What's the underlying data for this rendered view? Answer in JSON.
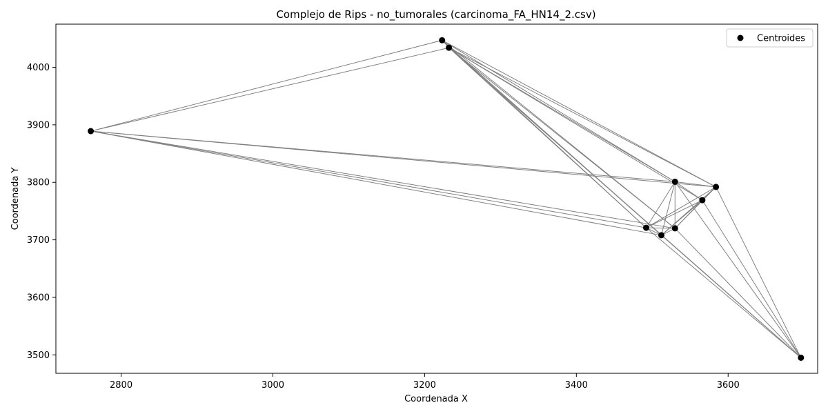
{
  "chart_data": {
    "type": "scatter",
    "title": "Complejo de Rips - no_tumorales (carcinoma_FA_HN14_2.csv)",
    "xlabel": "Coordenada X",
    "ylabel": "Coordenada Y",
    "xlim": [
      2714,
      3718
    ],
    "ylim": [
      3468,
      4075
    ],
    "xticks": [
      2800,
      3000,
      3200,
      3400,
      3600
    ],
    "yticks": [
      3500,
      3600,
      3700,
      3800,
      3900,
      4000
    ],
    "grid": false,
    "legend": {
      "position": "top-right",
      "entries": [
        "Centroides"
      ]
    },
    "colors": {
      "points": "#000000",
      "edges": "#808080"
    },
    "series": [
      {
        "name": "Centroides",
        "points": [
          {
            "x": 2760,
            "y": 3889
          },
          {
            "x": 3223,
            "y": 4047
          },
          {
            "x": 3232,
            "y": 4034
          },
          {
            "x": 3530,
            "y": 3801
          },
          {
            "x": 3584,
            "y": 3792
          },
          {
            "x": 3566,
            "y": 3769
          },
          {
            "x": 3492,
            "y": 3721
          },
          {
            "x": 3530,
            "y": 3720
          },
          {
            "x": 3512,
            "y": 3708
          },
          {
            "x": 3696,
            "y": 3495
          }
        ]
      }
    ],
    "edges": [
      [
        0,
        1
      ],
      [
        0,
        2
      ],
      [
        0,
        3
      ],
      [
        0,
        4
      ],
      [
        0,
        6
      ],
      [
        0,
        7
      ],
      [
        0,
        8
      ],
      [
        1,
        2
      ],
      [
        1,
        3
      ],
      [
        1,
        4
      ],
      [
        1,
        6
      ],
      [
        1,
        7
      ],
      [
        1,
        8
      ],
      [
        2,
        3
      ],
      [
        2,
        4
      ],
      [
        2,
        5
      ],
      [
        2,
        6
      ],
      [
        2,
        7
      ],
      [
        2,
        8
      ],
      [
        2,
        9
      ],
      [
        3,
        4
      ],
      [
        3,
        5
      ],
      [
        3,
        6
      ],
      [
        3,
        7
      ],
      [
        3,
        8
      ],
      [
        3,
        9
      ],
      [
        4,
        5
      ],
      [
        4,
        6
      ],
      [
        4,
        7
      ],
      [
        4,
        8
      ],
      [
        4,
        9
      ],
      [
        5,
        6
      ],
      [
        5,
        7
      ],
      [
        5,
        8
      ],
      [
        5,
        9
      ],
      [
        6,
        7
      ],
      [
        6,
        8
      ],
      [
        6,
        9
      ],
      [
        7,
        8
      ],
      [
        7,
        9
      ],
      [
        8,
        9
      ]
    ]
  }
}
